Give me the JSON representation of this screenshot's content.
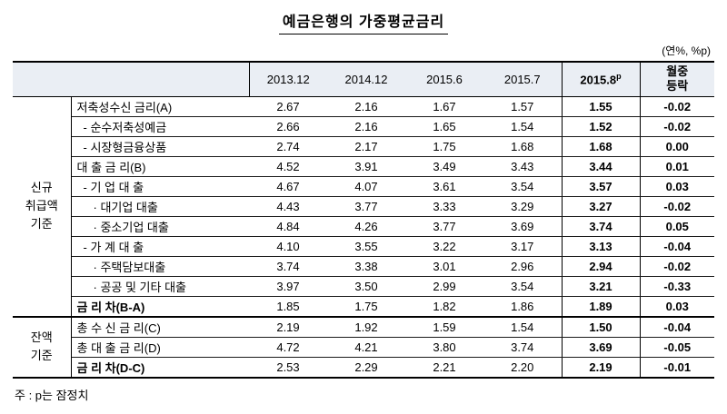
{
  "title": "예금은행의 가중평균금리",
  "unit_note": "(연%, %p)",
  "footnote": "주 : p는 잠정치",
  "table": {
    "col_headers": [
      "2013.12",
      "2014.12",
      "2015.6",
      "2015.7"
    ],
    "col_2015_8": {
      "label": "2015.8",
      "sup": "p"
    },
    "col_change": "월중\n등락",
    "groups": [
      {
        "label": "신규\n취급액\n기준",
        "rows": [
          {
            "label": "저축성수신 금리(A)",
            "values": [
              "2.67",
              "2.16",
              "1.67",
              "1.57",
              "1.55",
              "-0.02"
            ]
          },
          {
            "label": "- 순수저축성예금",
            "values": [
              "2.66",
              "2.16",
              "1.65",
              "1.54",
              "1.52",
              "-0.02"
            ]
          },
          {
            "label": "- 시장형금융상품",
            "values": [
              "2.74",
              "2.17",
              "1.75",
              "1.68",
              "1.68",
              "0.00"
            ]
          },
          {
            "label": "대 출 금 리(B)",
            "values": [
              "4.52",
              "3.91",
              "3.49",
              "3.43",
              "3.44",
              "0.01"
            ]
          },
          {
            "label": "- 기 업 대 출",
            "values": [
              "4.67",
              "4.07",
              "3.61",
              "3.54",
              "3.57",
              "0.03"
            ]
          },
          {
            "label": "· 대기업 대출",
            "values": [
              "4.43",
              "3.77",
              "3.33",
              "3.29",
              "3.27",
              "-0.02"
            ]
          },
          {
            "label": "· 중소기업 대출",
            "values": [
              "4.84",
              "4.26",
              "3.77",
              "3.69",
              "3.74",
              "0.05"
            ]
          },
          {
            "label": "- 가 계 대 출",
            "values": [
              "4.10",
              "3.55",
              "3.22",
              "3.17",
              "3.13",
              "-0.04"
            ]
          },
          {
            "label": "· 주택담보대출",
            "values": [
              "3.74",
              "3.38",
              "3.01",
              "2.96",
              "2.94",
              "-0.02"
            ]
          },
          {
            "label": "· 공공 및 기타 대출",
            "values": [
              "3.97",
              "3.50",
              "2.99",
              "3.54",
              "3.21",
              "-0.33"
            ]
          },
          {
            "label": "금 리 차(B-A)",
            "values": [
              "1.85",
              "1.75",
              "1.82",
              "1.86",
              "1.89",
              "0.03"
            ]
          }
        ]
      },
      {
        "label": "잔액\n기준",
        "rows": [
          {
            "label": "총 수 신 금 리(C)",
            "values": [
              "2.19",
              "1.92",
              "1.59",
              "1.54",
              "1.50",
              "-0.04"
            ]
          },
          {
            "label": "총 대 출 금 리(D)",
            "values": [
              "4.72",
              "4.21",
              "3.80",
              "3.74",
              "3.69",
              "-0.05"
            ]
          },
          {
            "label": "금 리 차(D-C)",
            "values": [
              "2.53",
              "2.29",
              "2.21",
              "2.20",
              "2.19",
              "-0.01"
            ]
          }
        ]
      }
    ]
  }
}
